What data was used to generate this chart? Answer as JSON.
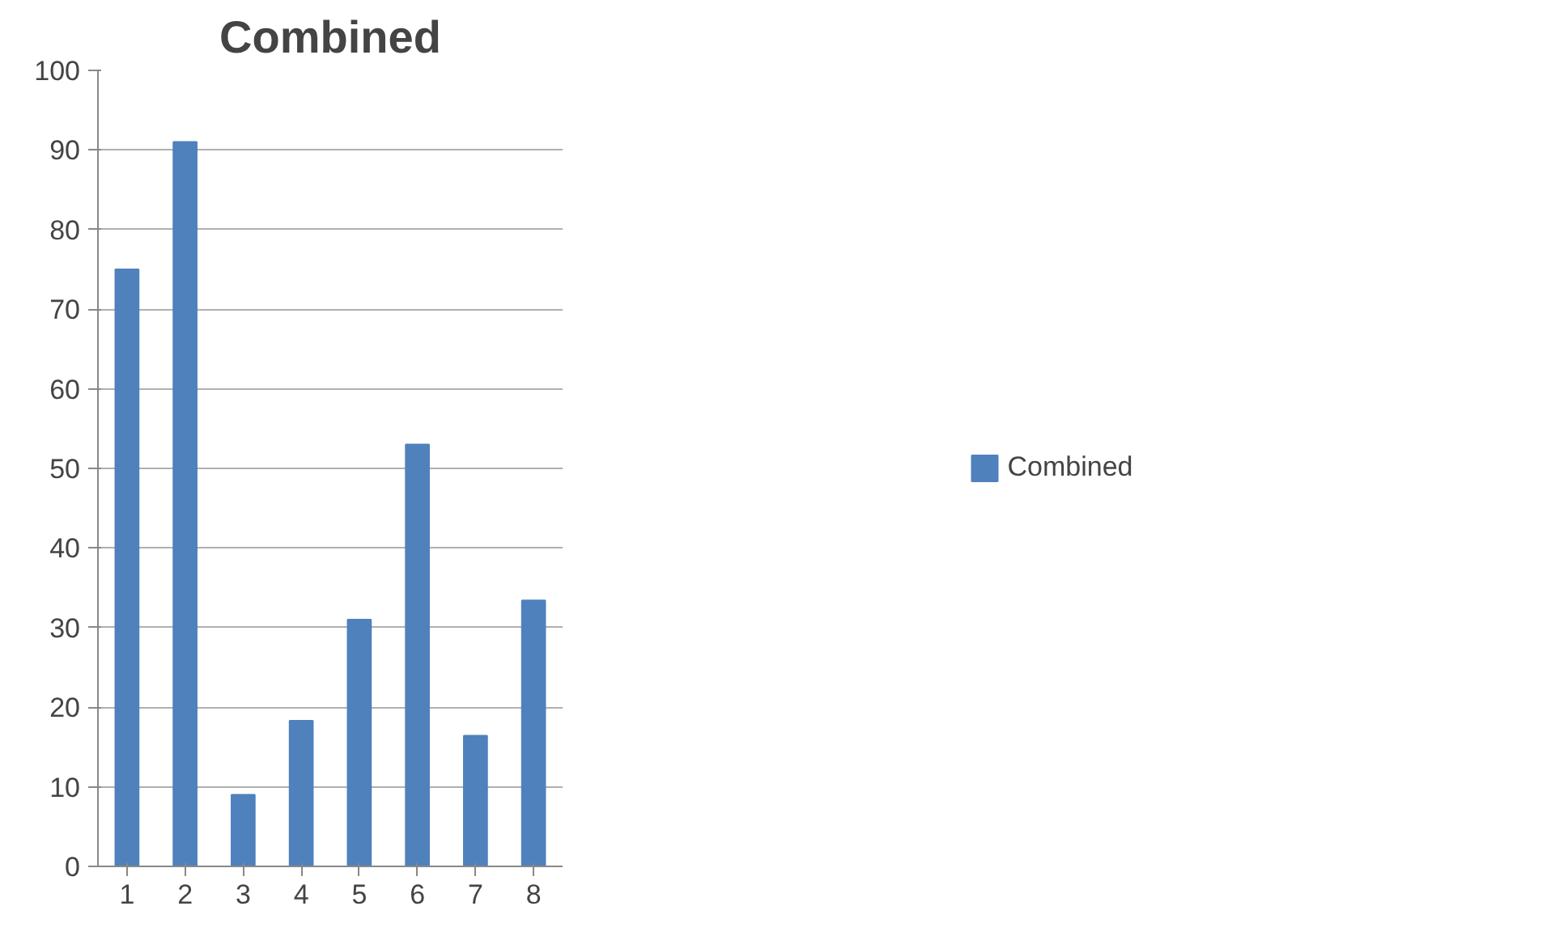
{
  "chart_data": {
    "type": "bar",
    "title": "Combined",
    "categories": [
      "1",
      "2",
      "3",
      "4",
      "5",
      "6",
      "7",
      "8"
    ],
    "series": [
      {
        "name": "Combined",
        "color": "#4f81bd",
        "values": [
          75,
          91,
          9,
          18.3,
          31,
          53,
          16.4,
          33.4
        ]
      }
    ],
    "ylim": [
      0,
      100
    ],
    "yticks": [
      0,
      10,
      20,
      30,
      40,
      50,
      60,
      70,
      80,
      90,
      100
    ],
    "grid": "y",
    "legend": "right"
  }
}
